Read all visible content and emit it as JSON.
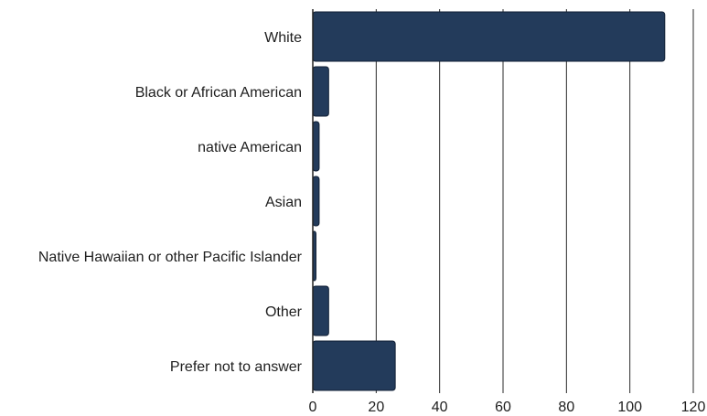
{
  "chart_data": {
    "type": "bar",
    "orientation": "horizontal",
    "categories": [
      "White",
      "Black or African American",
      "native American",
      "Asian",
      "Native Hawaiian or other Pacific Islander",
      "Other",
      "Prefer not to answer"
    ],
    "values": [
      111,
      5,
      2,
      2,
      1,
      5,
      26
    ],
    "xlim": [
      0,
      120
    ],
    "xticks": [
      0,
      20,
      40,
      60,
      80,
      100,
      120
    ],
    "grid": "vertical",
    "title": "",
    "xlabel": "",
    "ylabel": "",
    "colors": {
      "bar": "#233b5b",
      "grid": "#2b2b2b",
      "text": "#1e1e1e"
    }
  }
}
